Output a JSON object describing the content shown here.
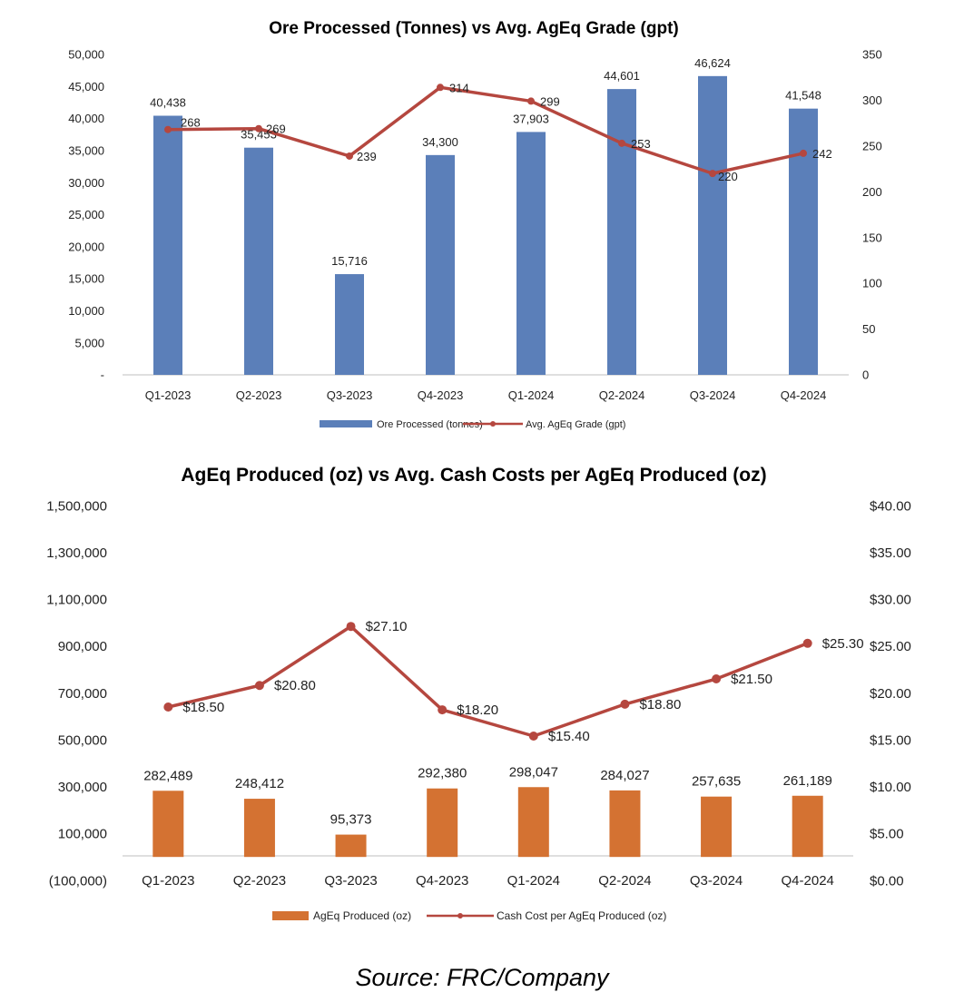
{
  "source": "Source: FRC/Company",
  "colors": {
    "ore_bar": "#5b7fb9",
    "grade_line": "#b5473f",
    "ageq_bar": "#d47232",
    "cost_line": "#b5473f",
    "axis": "#bfbfbf"
  },
  "chart_data": [
    {
      "type": "bar",
      "title": "Ore Processed (Tonnes) vs Avg. AgEq Grade (gpt)",
      "categories": [
        "Q1-2023",
        "Q2-2023",
        "Q3-2023",
        "Q4-2023",
        "Q1-2024",
        "Q2-2024",
        "Q3-2024",
        "Q4-2024"
      ],
      "series": [
        {
          "name": "Ore Processed (tonnes)",
          "kind": "bar",
          "axis": "left",
          "values": [
            40438,
            35453,
            15716,
            34300,
            37903,
            44601,
            46624,
            41548
          ],
          "labels": [
            "40,438",
            "35,453",
            "15,716",
            "34,300",
            "37,903",
            "44,601",
            "46,624",
            "41,548"
          ]
        },
        {
          "name": "Avg. AgEq Grade (gpt)",
          "kind": "line",
          "axis": "right",
          "values": [
            268,
            269,
            239,
            314,
            299,
            253,
            220,
            242
          ],
          "labels": [
            "268",
            "269",
            "239",
            "314",
            "299",
            "253",
            "220",
            "242"
          ]
        }
      ],
      "left_axis": {
        "min": 0,
        "max": 50000,
        "ticks": [
          "-",
          "5,000",
          "10,000",
          "15,000",
          "20,000",
          "25,000",
          "30,000",
          "35,000",
          "40,000",
          "45,000",
          "50,000"
        ]
      },
      "right_axis": {
        "min": 0,
        "max": 350,
        "ticks": [
          "0",
          "50",
          "100",
          "150",
          "200",
          "250",
          "300",
          "350"
        ]
      },
      "grid": false,
      "legend_position": "bottom"
    },
    {
      "type": "bar",
      "title": "AgEq Produced (oz) vs Avg. Cash Costs per AgEq Produced (oz)",
      "categories": [
        "Q1-2023",
        "Q2-2023",
        "Q3-2023",
        "Q4-2023",
        "Q1-2024",
        "Q2-2024",
        "Q3-2024",
        "Q4-2024"
      ],
      "series": [
        {
          "name": "AgEq Produced (oz)",
          "kind": "bar",
          "axis": "left",
          "values": [
            282489,
            248412,
            95373,
            292380,
            298047,
            284027,
            257635,
            261189
          ],
          "labels": [
            "282,489",
            "248,412",
            "95,373",
            "292,380",
            "298,047",
            "284,027",
            "257,635",
            "261,189"
          ]
        },
        {
          "name": "Cash Cost per AgEq Produced (oz)",
          "kind": "line",
          "axis": "right",
          "values": [
            18.5,
            20.8,
            27.1,
            18.2,
            15.4,
            18.8,
            21.5,
            25.3
          ],
          "labels": [
            "$18.50",
            "$20.80",
            "$27.10",
            "$18.20",
            "$15.40",
            "$18.80",
            "$21.50",
            "$25.30"
          ]
        }
      ],
      "left_axis": {
        "min": -100000,
        "max": 1500000,
        "ticks": [
          "(100,000)",
          "100,000",
          "300,000",
          "500,000",
          "700,000",
          "900,000",
          "1,100,000",
          "1,300,000",
          "1,500,000"
        ]
      },
      "right_axis": {
        "min": 0,
        "max": 40,
        "ticks": [
          "$0.00",
          "$5.00",
          "$10.00",
          "$15.00",
          "$20.00",
          "$25.00",
          "$30.00",
          "$35.00",
          "$40.00"
        ]
      },
      "grid": false,
      "legend_position": "bottom"
    }
  ]
}
